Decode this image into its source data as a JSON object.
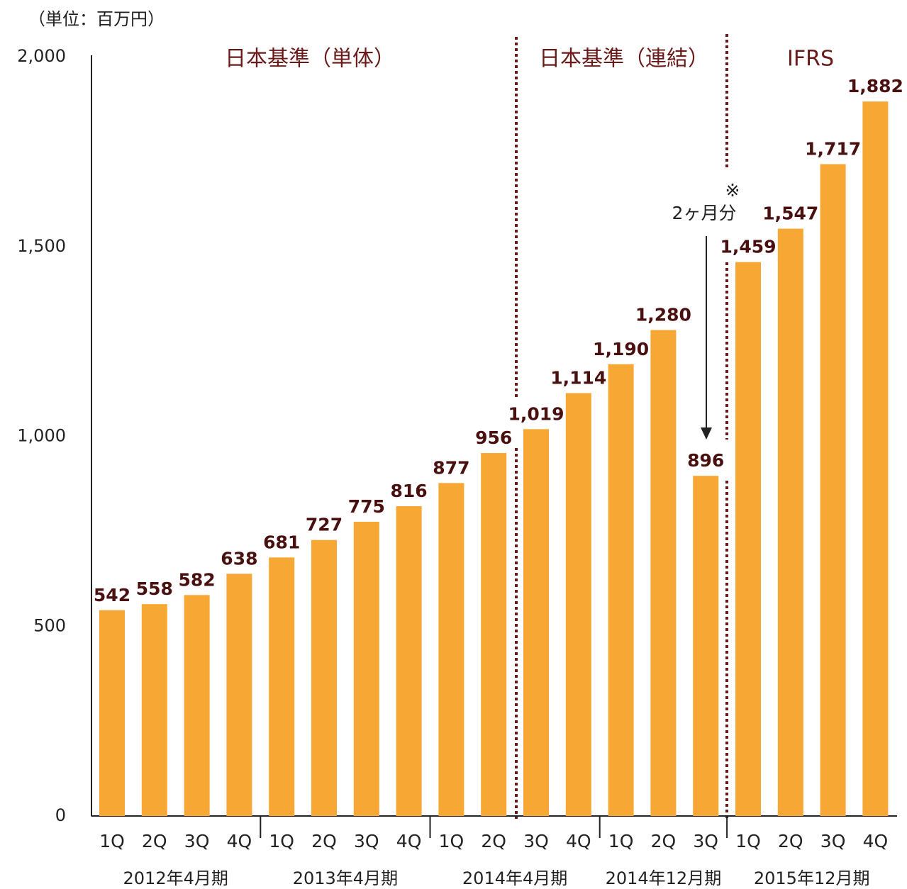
{
  "chart_data": {
    "type": "bar",
    "unit_label": "（単位：百万円）",
    "categories": [
      "1Q",
      "2Q",
      "3Q",
      "4Q",
      "1Q",
      "2Q",
      "3Q",
      "4Q",
      "1Q",
      "2Q",
      "3Q",
      "4Q",
      "1Q",
      "2Q",
      "3Q",
      "1Q",
      "2Q",
      "3Q",
      "4Q"
    ],
    "values": [
      542,
      558,
      582,
      638,
      681,
      727,
      775,
      816,
      877,
      956,
      1019,
      1114,
      1190,
      1280,
      896,
      1459,
      1547,
      1717,
      1882
    ],
    "value_labels": [
      "542",
      "558",
      "582",
      "638",
      "681",
      "727",
      "775",
      "816",
      "877",
      "956",
      "1,019",
      "1,114",
      "1,190",
      "1,280",
      "896",
      "1,459",
      "1,547",
      "1,717",
      "1,882"
    ],
    "color": "#f7a733",
    "period_groups": [
      "2012年4月期",
      "2013年4月期",
      "2014年4月期",
      "2014年12月期",
      "2015年12月期"
    ],
    "sections": [
      "日本基準（単体）",
      "日本基準（連結）",
      "IFRS"
    ],
    "annotation": {
      "mark": "※",
      "text": "2ヶ月分"
    },
    "ylim": [
      0,
      2000
    ],
    "yticks": [
      0,
      500,
      {
        "value": 1000,
        "label": "1,000"
      },
      {
        "value": 1500,
        "label": "1,500"
      },
      {
        "value": 2000,
        "label": "2,000"
      }
    ],
    "grid": false
  }
}
